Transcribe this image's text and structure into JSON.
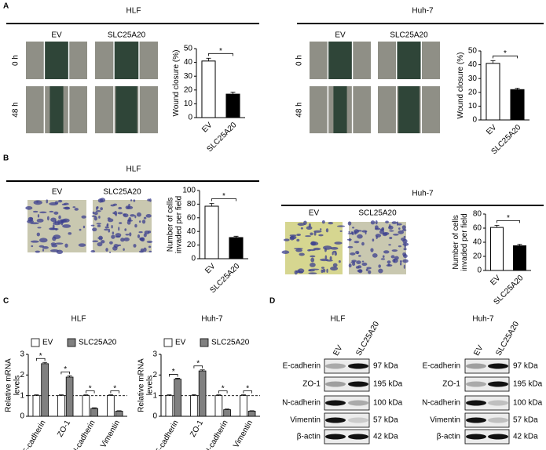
{
  "panel_labels": [
    "A",
    "B",
    "C",
    "D"
  ],
  "sections": [
    {
      "title": "HLF",
      "image_columns": [
        "EV",
        "SLC25A20"
      ],
      "image_rows": [
        "0 h",
        "48 h"
      ]
    },
    {
      "title": "Huh-7",
      "image_columns": [
        "EV",
        "SLC25A20"
      ],
      "image_rows": [
        "0 h",
        "48 h"
      ]
    },
    {
      "title": "HLF",
      "image_columns": [
        "EV",
        "SLC25A20"
      ]
    },
    {
      "title": "Huh-7",
      "image_columns": [
        "EV",
        "SCL25A20"
      ]
    }
  ],
  "chart_data": [
    {
      "type": "bar",
      "ylabel": "Wound closure (%)",
      "categories": [
        "EV",
        "SLC25A20"
      ],
      "values": [
        41,
        17
      ],
      "errors": [
        2,
        1.5
      ],
      "colors": [
        "#ffffff",
        "#000000"
      ],
      "ylim": [
        0,
        50
      ],
      "yticks": [
        0,
        10,
        20,
        30,
        40,
        50
      ],
      "annotation": "*"
    },
    {
      "type": "bar",
      "ylabel": "Wound closure (%)",
      "categories": [
        "EV",
        "SLC25A20"
      ],
      "values": [
        41,
        22
      ],
      "errors": [
        2,
        1
      ],
      "colors": [
        "#ffffff",
        "#000000"
      ],
      "ylim": [
        0,
        50
      ],
      "yticks": [
        0,
        10,
        20,
        30,
        40,
        50
      ],
      "annotation": "*"
    },
    {
      "type": "bar",
      "ylabel": "Number of cells invaded per field",
      "categories": [
        "EV",
        "SLC25A20"
      ],
      "values": [
        77,
        31
      ],
      "errors": [
        4,
        2
      ],
      "colors": [
        "#ffffff",
        "#000000"
      ],
      "ylim": [
        0,
        100
      ],
      "yticks": [
        0,
        20,
        40,
        60,
        80,
        100
      ],
      "annotation": "*"
    },
    {
      "type": "bar",
      "ylabel": "Number of cells invaded per field",
      "categories": [
        "EV",
        "SLC25A20"
      ],
      "values": [
        61,
        35
      ],
      "errors": [
        3,
        2
      ],
      "colors": [
        "#ffffff",
        "#000000"
      ],
      "ylim": [
        0,
        80
      ],
      "yticks": [
        0,
        20,
        40,
        60,
        80
      ],
      "annotation": "*"
    },
    {
      "type": "grouped_bar",
      "title": "HLF",
      "ylabel": "Relative mRNA levels",
      "categories": [
        "E-cadherin",
        "ZO-1",
        "N-cadherin",
        "Vimentin"
      ],
      "series": [
        {
          "name": "EV",
          "color": "#ffffff",
          "values": [
            1,
            1,
            1,
            1
          ],
          "errors": [
            0.04,
            0.04,
            0.04,
            0.04
          ]
        },
        {
          "name": "SLC25A20",
          "color": "#808080",
          "values": [
            2.55,
            1.9,
            0.38,
            0.25
          ],
          "errors": [
            0.06,
            0.06,
            0.03,
            0.02
          ]
        }
      ],
      "ylim": [
        0,
        3
      ],
      "yticks": [
        0,
        1,
        2,
        3
      ],
      "reference_line": 1,
      "annotation": "*"
    },
    {
      "type": "grouped_bar",
      "title": "Huh-7",
      "ylabel": "Relative mRNA levels",
      "categories": [
        "E-cadherin",
        "ZO-1",
        "N-cadherin",
        "Vimentin"
      ],
      "series": [
        {
          "name": "EV",
          "color": "#ffffff",
          "values": [
            1,
            1,
            1,
            1
          ],
          "errors": [
            0.04,
            0.05,
            0.04,
            0.04
          ]
        },
        {
          "name": "SLC25A20",
          "color": "#808080",
          "values": [
            1.8,
            2.2,
            0.32,
            0.25
          ],
          "errors": [
            0.04,
            0.05,
            0.03,
            0.02
          ]
        }
      ],
      "ylim": [
        0,
        3
      ],
      "yticks": [
        0,
        1,
        2,
        3
      ],
      "reference_line": 1,
      "annotation": "*"
    }
  ],
  "blots": [
    {
      "title": "HLF",
      "lanes": [
        "EV",
        "SLC25A20"
      ],
      "proteins": [
        "E-cadherin",
        "ZO-1",
        "N-cadherin",
        "Vimentin",
        "β-actin"
      ],
      "sizes": [
        "97 kDa",
        "195 kDa",
        "100 kDa",
        "57 kDa",
        "42 kDa"
      ]
    },
    {
      "title": "Huh-7",
      "lanes": [
        "EV",
        "SLC25A20"
      ],
      "proteins": [
        "E-cadherin",
        "ZO-1",
        "N-cadherin",
        "Vimentin",
        "β-actin"
      ],
      "sizes": [
        "97 kDa",
        "195 kDa",
        "100 kDa",
        "57 kDa",
        "42 kDa"
      ]
    }
  ]
}
